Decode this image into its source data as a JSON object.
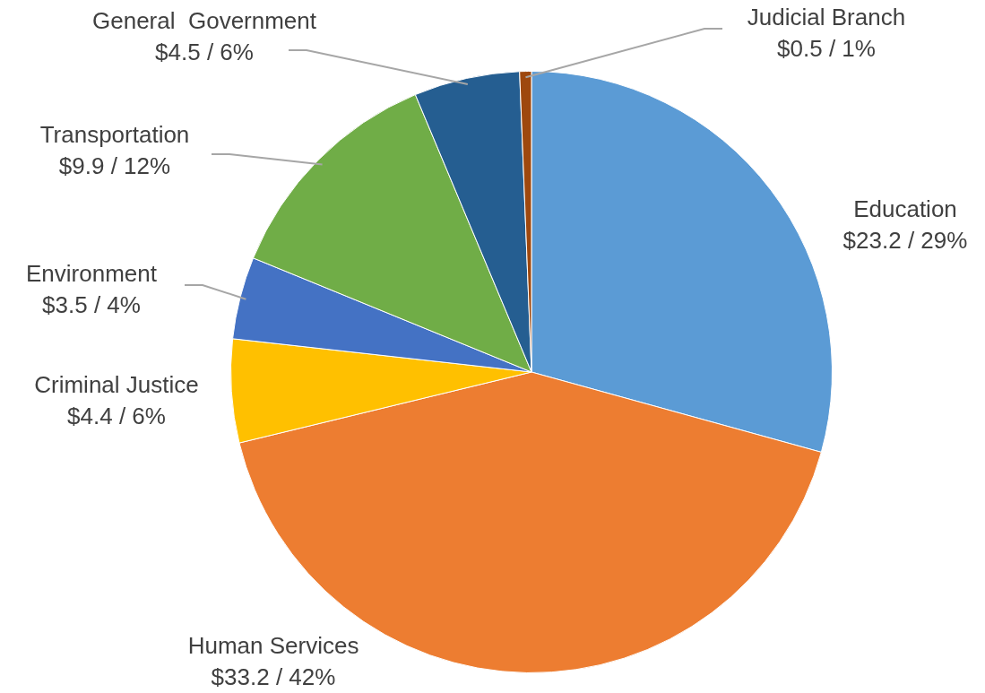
{
  "chart_data": {
    "type": "pie",
    "categories": [
      "Education",
      "Human Services",
      "Criminal Justice",
      "Environment",
      "Transportation",
      "General  Government",
      "Judicial Branch"
    ],
    "values": [
      23.2,
      33.2,
      4.4,
      3.5,
      9.9,
      4.5,
      0.5
    ],
    "value_labels": [
      "$23.2 / 29%",
      "$33.2 / 42%",
      "$4.4 / 6%",
      "$3.5 / 4%",
      "$9.9 / 12%",
      "$4.5 / 6%",
      "$0.5 / 1%"
    ],
    "colors": [
      "#5b9bd5",
      "#ed7d31",
      "#ffc000",
      "#4472c4",
      "#70ad47",
      "#255e91",
      "#9e480e"
    ],
    "legend": false
  }
}
